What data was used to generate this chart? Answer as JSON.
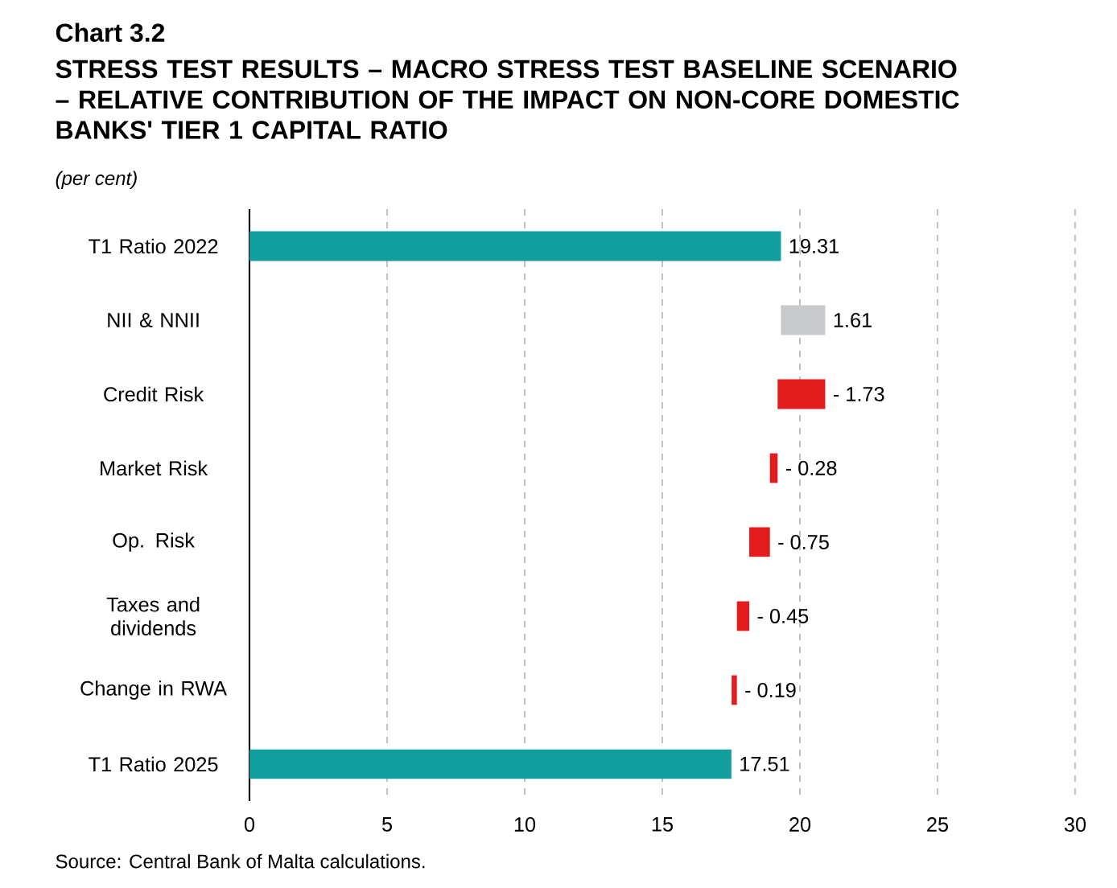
{
  "chart_data": {
    "type": "bar",
    "orientation": "horizontal",
    "title": "Chart 3.2",
    "subtitle": "STRESS TEST RESULTS – MACRO STRESS TEST BASELINE SCENARIO – RELATIVE CONTRIBUTION OF THE IMPACT ON NON-CORE DOMESTIC BANKS' TIER 1 CAPITAL RATIO",
    "annotations": [
      "(per cent)",
      "Source: Central Bank of Malta calculations."
    ],
    "categories": [
      "T1 Ratio 2022",
      "NII & NNII",
      "Credit Risk",
      "Market Risk",
      "Op. Risk",
      "Taxes and dividends",
      "Change in RWA",
      "T1 Ratio 2025"
    ],
    "values": [
      19.31,
      1.61,
      -1.73,
      -0.28,
      -0.75,
      -0.45,
      -0.19,
      17.51
    ],
    "base": [
      0,
      19.31,
      20.92,
      19.19,
      18.91,
      18.16,
      17.71,
      0
    ],
    "colors": [
      "#109e9f",
      "#c8c9cb",
      "#e31b1c",
      "#e31b1c",
      "#e31b1c",
      "#e31b1c",
      "#e31b1c",
      "#109e9f"
    ],
    "value_labels": [
      "19.31",
      "1.61",
      "-  1.73",
      "-  0.28",
      "-  0.75",
      "-  0.45",
      "-  0.19",
      "17.51"
    ],
    "xlim": [
      0,
      30
    ],
    "xticks": [
      0,
      5,
      10,
      15,
      20,
      25,
      30
    ],
    "grid": "x"
  }
}
